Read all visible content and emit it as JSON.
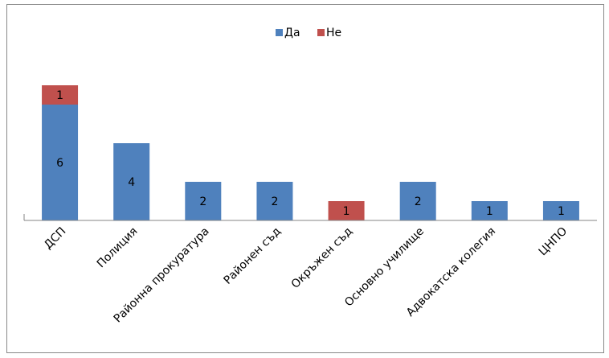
{
  "chart_data": {
    "type": "bar",
    "stacked": true,
    "categories": [
      "ДСП",
      "Полиция",
      "Районна прокуратура",
      "Районен съд",
      "Окръжен съд",
      "Основно училище",
      "Адвокатска колегия",
      "ЦНПО"
    ],
    "series": [
      {
        "name": "Да",
        "values": [
          6,
          4,
          2,
          2,
          0,
          2,
          1,
          1
        ],
        "color": "#4f81bd"
      },
      {
        "name": "Не",
        "values": [
          1,
          0,
          0,
          0,
          1,
          0,
          0,
          0
        ],
        "color": "#c0504d"
      }
    ],
    "ylim": [
      0,
      7
    ],
    "legend": "top-center",
    "grid": false,
    "data_labels": true
  }
}
